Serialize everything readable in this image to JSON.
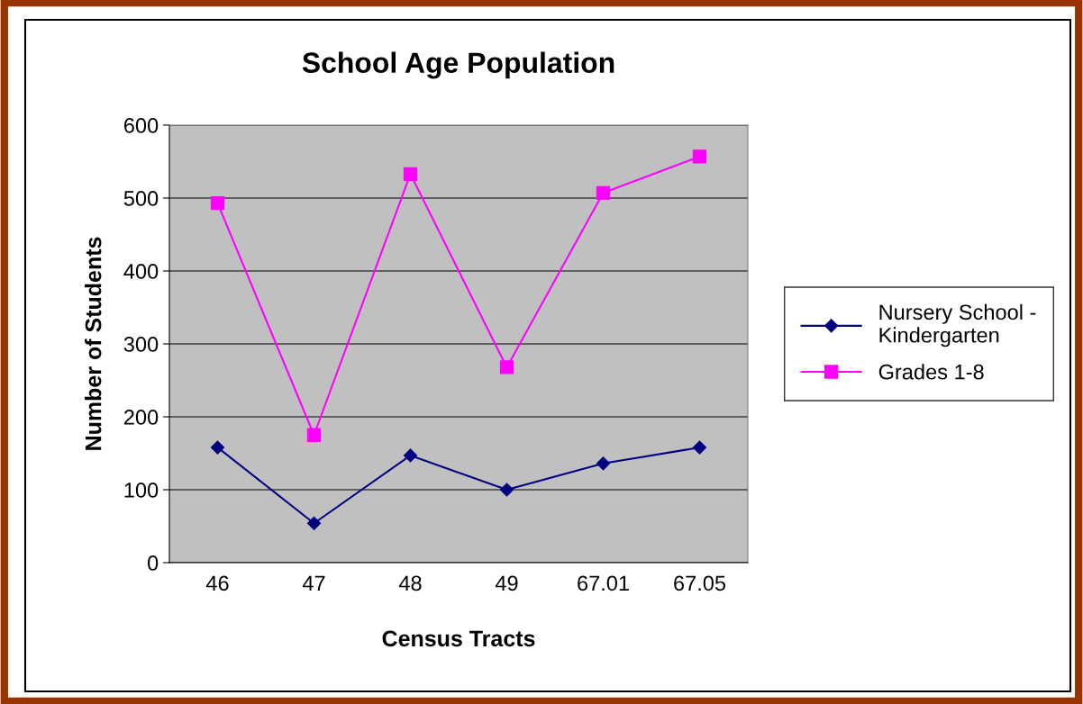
{
  "chart_data": {
    "type": "line",
    "title": "School Age Population",
    "xlabel": "Census Tracts",
    "ylabel": "Number of Students",
    "categories": [
      "46",
      "47",
      "48",
      "49",
      "67.01",
      "67.05"
    ],
    "series": [
      {
        "name": "Nursery School -\nKindergarten",
        "color": "#000080",
        "marker": "diamond",
        "values": [
          158,
          54,
          147,
          100,
          136,
          158
        ]
      },
      {
        "name": "Grades 1-8",
        "color": "#ff00ff",
        "marker": "square",
        "values": [
          493,
          175,
          533,
          268,
          507,
          557
        ]
      }
    ],
    "ylim": [
      0,
      600
    ],
    "yticks": [
      0,
      100,
      200,
      300,
      400,
      500,
      600
    ],
    "grid": "y",
    "legend": "right",
    "line_style": "solid"
  }
}
